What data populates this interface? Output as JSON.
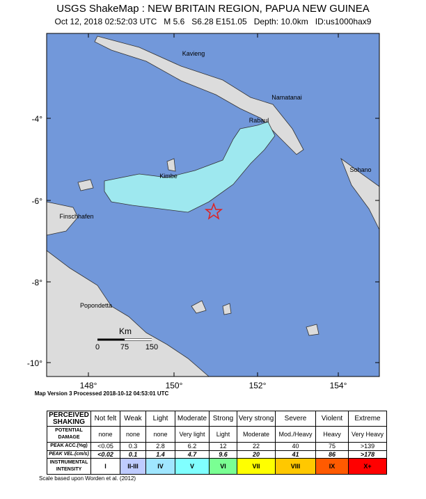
{
  "header": {
    "title": "USGS ShakeMap : NEW BRITAIN REGION, PAPUA NEW GUINEA",
    "subtitle": "Oct 12, 2018 02:52:03 UTC   M 5.6   S6.28 E151.05   Depth: 10.0km   ID:us1000hax9"
  },
  "map": {
    "places": [
      "Kavieng",
      "Namatanai",
      "Rabaul",
      "Kimbe",
      "Sohano",
      "Finschhafen",
      "Popondetta"
    ],
    "lat_ticks": [
      "-4°",
      "-6°",
      "-8°",
      "-10°"
    ],
    "lon_ticks": [
      "148°",
      "150°",
      "152°",
      "154°"
    ],
    "scale": {
      "unit": "Km",
      "labels": [
        "0",
        "75",
        "150"
      ]
    },
    "footnote": "Map Version 3 Processed 2018-10-12 04:53:01 UTC"
  },
  "table": {
    "rows": [
      [
        "PERCEIVED SHAKING",
        "Not felt",
        "Weak",
        "Light",
        "Moderate",
        "Strong",
        "Very strong",
        "Severe",
        "Violent",
        "Extreme"
      ],
      [
        "POTENTIAL DAMAGE",
        "none",
        "none",
        "none",
        "Very light",
        "Light",
        "Moderate",
        "Mod./Heavy",
        "Heavy",
        "Very Heavy"
      ],
      [
        "PEAK ACC.(%g)",
        "<0.05",
        "0.3",
        "2.8",
        "6.2",
        "12",
        "22",
        "40",
        "75",
        ">139"
      ],
      [
        "PEAK VEL.(cm/s)",
        "<0.02",
        "0.1",
        "1.4",
        "4.7",
        "9.6",
        "20",
        "41",
        "86",
        ">178"
      ],
      [
        "INSTRUMENTAL INTENSITY",
        "I",
        "II-III",
        "IV",
        "V",
        "VI",
        "VII",
        "VIII",
        "IX",
        "X+"
      ]
    ],
    "intensity_colors": [
      "#ffffff",
      "#bfccff",
      "#a0e6ff",
      "#80ffff",
      "#7aff93",
      "#ffff00",
      "#ffc800",
      "#ff5a00",
      "#ff0000"
    ],
    "footnote": "Scale based upon Worden et al. (2012)"
  }
}
